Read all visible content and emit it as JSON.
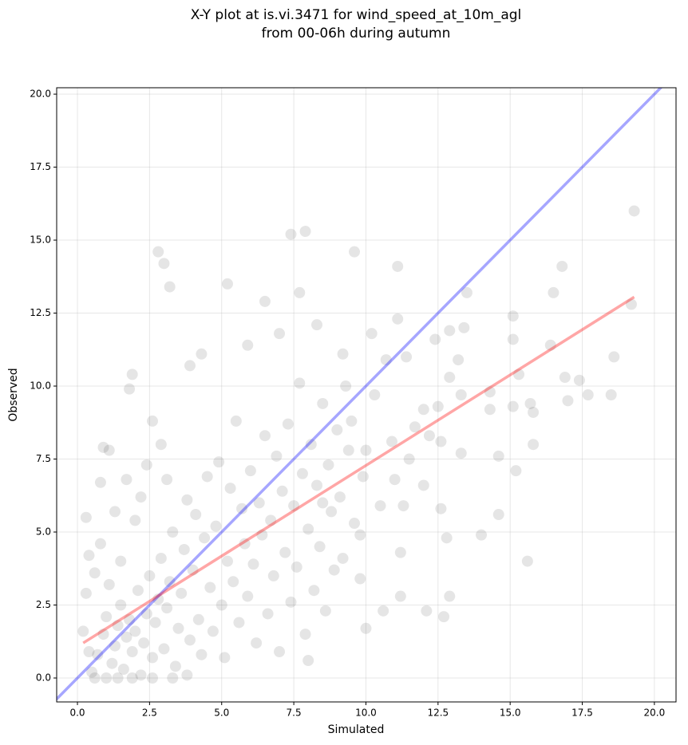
{
  "chart_data": {
    "type": "scatter",
    "title": "X-Y plot at is.vi.3471 for wind_speed_at_10m_agl",
    "subtitle": "from 00-06h during autumn",
    "x_label": "Simulated",
    "y_label": "Observed",
    "xlim": [
      -0.72,
      20.75
    ],
    "ylim": [
      -0.82,
      20.22
    ],
    "xticks": [
      {
        "value": 0,
        "label": "0.0"
      },
      2.5,
      {
        "value": 5,
        "label": "5.0"
      },
      7.5,
      {
        "value": 10,
        "label": "10.0"
      },
      12.5,
      {
        "value": 15,
        "label": "15.0"
      },
      17.5,
      {
        "value": 20,
        "label": "20.0"
      }
    ],
    "yticks": [
      {
        "value": 0,
        "label": "0.0"
      },
      2.5,
      {
        "value": 5,
        "label": "5.0"
      },
      7.5,
      {
        "value": 10,
        "label": "10.0"
      },
      12.5,
      {
        "value": 15,
        "label": "15.0"
      },
      17.5,
      {
        "value": 20,
        "label": "20.0"
      }
    ],
    "grid": true,
    "series": [
      {
        "type": "scatter",
        "color": "#000000",
        "opacity": 0.1,
        "x": [
          19.3,
          19.2,
          18.6,
          18.5,
          17.7,
          17.4,
          17.0,
          16.9,
          16.8,
          16.5,
          16.4,
          15.8,
          15.8,
          15.7,
          15.6,
          15.1,
          15.1,
          15.1,
          15.2,
          15.3,
          14.6,
          14.6,
          14.3,
          14.3,
          14.0,
          13.5,
          13.4,
          13.3,
          13.3,
          13.2,
          12.9,
          12.9,
          12.9,
          12.8,
          12.7,
          12.6,
          12.6,
          12.5,
          12.4,
          12.2,
          12.1,
          12.0,
          12.0,
          11.7,
          11.5,
          11.4,
          11.2,
          11.2,
          11.3,
          11.1,
          11.1,
          11.0,
          10.9,
          10.7,
          10.6,
          10.5,
          10.3,
          10.2,
          10.0,
          10.0,
          9.8,
          9.6,
          9.5,
          9.2,
          8.5,
          8.3,
          8.0,
          7.9,
          7.7,
          7.4,
          7.0,
          6.5,
          5.9,
          5.2,
          4.3,
          3.9,
          3.2,
          3.0,
          2.8,
          1.8,
          1.9,
          0.9,
          0.8,
          1.1,
          0.3,
          0.4,
          0.5,
          0.7,
          0.9,
          1.0,
          1.2,
          1.3,
          1.4,
          1.5,
          1.6,
          1.7,
          1.8,
          1.9,
          2.0,
          2.1,
          2.2,
          2.3,
          2.4,
          2.5,
          2.6,
          2.7,
          2.8,
          2.9,
          3.0,
          3.1,
          3.2,
          3.3,
          3.4,
          3.5,
          3.6,
          3.7,
          3.8,
          3.9,
          4.0,
          4.1,
          4.2,
          4.3,
          4.4,
          4.5,
          4.6,
          4.7,
          4.8,
          4.9,
          5.0,
          5.1,
          5.2,
          5.3,
          5.4,
          5.5,
          5.6,
          5.7,
          5.8,
          5.9,
          6.0,
          6.1,
          6.2,
          6.3,
          6.4,
          6.5,
          6.6,
          6.7,
          6.8,
          6.9,
          7.0,
          7.1,
          7.2,
          7.3,
          7.4,
          7.5,
          7.6,
          7.7,
          7.8,
          7.9,
          8.0,
          8.1,
          8.2,
          8.3,
          8.4,
          8.5,
          8.6,
          8.7,
          8.8,
          8.9,
          9.0,
          9.1,
          9.2,
          9.3,
          9.4,
          9.6,
          9.8,
          9.9,
          0.3,
          0.6,
          0.8,
          1.1,
          1.3,
          1.5,
          1.7,
          2.0,
          2.2,
          2.4,
          2.6,
          2.9,
          3.1,
          0.2,
          0.4,
          0.6,
          1.0,
          1.4,
          1.9,
          2.6,
          3.3,
          3.8
        ],
        "values": [
          16.0,
          12.8,
          11.0,
          9.7,
          9.7,
          10.2,
          9.5,
          10.3,
          14.1,
          13.2,
          11.4,
          9.1,
          8.0,
          9.4,
          4.0,
          12.4,
          11.6,
          9.3,
          7.1,
          10.4,
          7.6,
          5.6,
          9.2,
          9.8,
          4.9,
          13.2,
          12.0,
          9.7,
          7.7,
          10.9,
          11.9,
          10.3,
          2.8,
          4.8,
          2.1,
          5.8,
          8.1,
          9.3,
          11.6,
          8.3,
          2.3,
          6.6,
          9.2,
          8.6,
          7.5,
          11.0,
          2.8,
          4.3,
          5.9,
          14.1,
          12.3,
          6.8,
          8.1,
          10.9,
          2.3,
          5.9,
          9.7,
          11.8,
          1.7,
          7.8,
          4.9,
          14.6,
          8.8,
          11.1,
          6.0,
          12.1,
          0.6,
          15.3,
          13.2,
          15.2,
          11.8,
          12.9,
          11.4,
          13.5,
          11.1,
          10.7,
          13.4,
          14.2,
          14.6,
          9.9,
          10.4,
          7.9,
          6.7,
          7.8,
          5.5,
          4.2,
          0.2,
          0.8,
          1.5,
          2.1,
          0.5,
          1.1,
          1.8,
          2.5,
          0.3,
          1.4,
          2.0,
          0.9,
          1.6,
          3.0,
          0.1,
          1.2,
          2.2,
          3.5,
          0.7,
          1.9,
          2.7,
          4.1,
          1.0,
          2.4,
          3.3,
          5.0,
          0.4,
          1.7,
          2.9,
          4.4,
          6.1,
          1.3,
          3.7,
          5.6,
          2.0,
          0.8,
          4.8,
          6.9,
          3.1,
          1.6,
          5.2,
          7.4,
          2.5,
          0.7,
          4.0,
          6.5,
          3.3,
          8.8,
          1.9,
          5.8,
          4.6,
          2.8,
          7.1,
          3.9,
          1.2,
          6.0,
          4.9,
          8.3,
          2.2,
          5.4,
          3.5,
          7.6,
          0.9,
          6.4,
          4.3,
          8.7,
          2.6,
          5.9,
          3.8,
          10.1,
          7.0,
          1.5,
          5.1,
          8.0,
          3.0,
          6.6,
          4.5,
          9.4,
          2.3,
          7.3,
          5.7,
          3.7,
          8.5,
          6.2,
          4.1,
          10.0,
          7.8,
          5.3,
          3.4,
          6.9,
          2.9,
          3.6,
          4.6,
          3.2,
          5.7,
          4.0,
          6.8,
          5.4,
          6.2,
          7.3,
          8.8,
          8.0,
          6.8,
          1.6,
          0.9,
          0.0,
          0.0,
          0.0,
          0.0,
          0.0,
          0.0,
          0.1
        ]
      },
      {
        "type": "line",
        "color": "#0000ff",
        "opacity": 0.35,
        "x": [
          -0.8,
          20.8
        ],
        "values": [
          -0.8,
          20.8
        ]
      },
      {
        "type": "line",
        "color": "#ff0000",
        "opacity": 0.35,
        "x": [
          0.2,
          19.3
        ],
        "values": [
          1.2,
          13.05
        ]
      }
    ]
  }
}
